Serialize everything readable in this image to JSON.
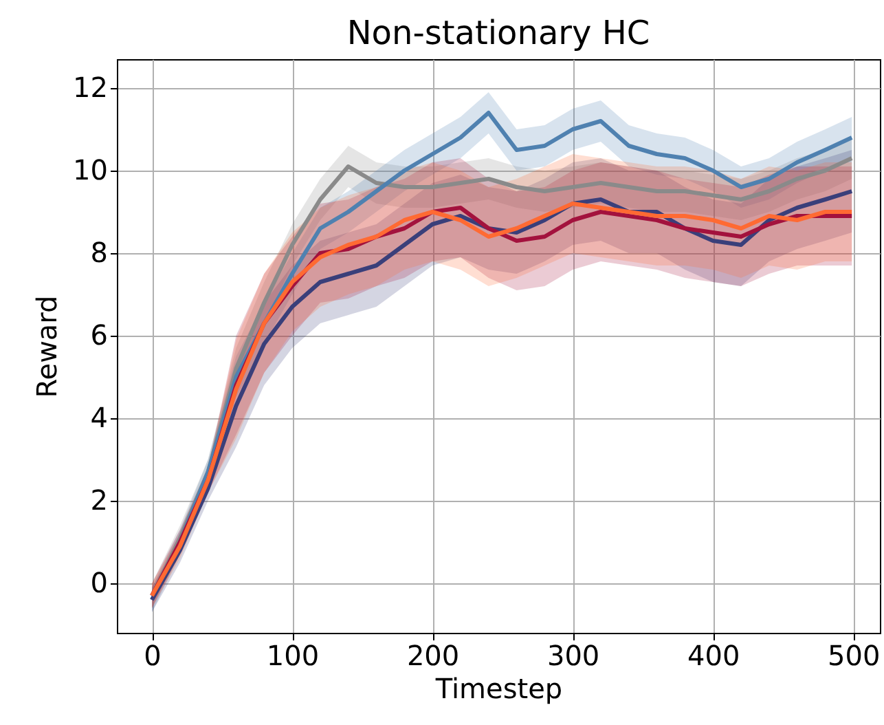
{
  "chart_data": {
    "type": "line",
    "title": "Non-stationary HC",
    "xlabel": "Timestep",
    "ylabel": "Reward",
    "x": [
      0,
      20,
      40,
      60,
      80,
      100,
      120,
      140,
      160,
      180,
      200,
      220,
      240,
      260,
      280,
      300,
      320,
      340,
      360,
      380,
      400,
      420,
      440,
      460,
      480,
      499
    ],
    "xlim": [
      -25,
      519
    ],
    "xticks": [
      0,
      100,
      200,
      300,
      400,
      500
    ],
    "ylim": [
      -1.2,
      12.7
    ],
    "yticks": [
      0,
      2,
      4,
      6,
      8,
      10,
      12
    ],
    "grid": true,
    "legend": false,
    "marker": "none",
    "line_style": "solid",
    "series": [
      {
        "color": "#8a8a8a",
        "values": [
          -0.3,
          1.1,
          2.7,
          5.2,
          6.8,
          8.2,
          9.3,
          10.1,
          9.7,
          9.6,
          9.6,
          9.7,
          9.8,
          9.6,
          9.5,
          9.6,
          9.7,
          9.6,
          9.5,
          9.5,
          9.4,
          9.3,
          9.5,
          9.8,
          10,
          10.3
        ],
        "lower": [
          -0.6,
          0.8,
          2.4,
          4.7,
          6.3,
          7.7,
          8.8,
          9.6,
          9.2,
          9.1,
          9.1,
          9.2,
          9.3,
          9.1,
          9,
          9.1,
          9.2,
          9.1,
          9,
          9,
          8.9,
          8.8,
          9,
          9.3,
          9.5,
          9.8
        ],
        "upper": [
          0,
          1.4,
          3,
          5.7,
          7.3,
          8.7,
          9.8,
          10.6,
          10.2,
          10.1,
          10.1,
          10.2,
          10.3,
          10.1,
          10,
          10.1,
          10.2,
          10.1,
          10,
          10,
          9.9,
          9.8,
          10,
          10.3,
          10.5,
          10.8
        ]
      },
      {
        "color": "#4f81b0",
        "values": [
          -0.4,
          1,
          2.7,
          5,
          6.3,
          7.5,
          8.6,
          9,
          9.5,
          10,
          10.4,
          10.8,
          11.4,
          10.5,
          10.6,
          11,
          11.2,
          10.6,
          10.4,
          10.3,
          10,
          9.6,
          9.8,
          10.2,
          10.5,
          10.8
        ],
        "lower": [
          -0.7,
          0.7,
          2.4,
          4.5,
          5.8,
          7,
          8.1,
          8.5,
          9,
          9.5,
          9.9,
          10.3,
          10.9,
          10,
          10.1,
          10.5,
          10.7,
          10.1,
          9.9,
          9.8,
          9.5,
          9.1,
          9.3,
          9.7,
          10,
          10.3
        ],
        "upper": [
          -0.1,
          1.3,
          3,
          5.5,
          6.8,
          8,
          9.1,
          9.5,
          10,
          10.5,
          10.9,
          11.3,
          11.9,
          11,
          11.1,
          11.5,
          11.7,
          11.1,
          10.9,
          10.8,
          10.5,
          10.1,
          10.3,
          10.7,
          11,
          11.3
        ]
      },
      {
        "color": "#3a3f7a",
        "values": [
          -0.4,
          0.8,
          2.3,
          4.3,
          5.8,
          6.7,
          7.3,
          7.5,
          7.7,
          8.2,
          8.7,
          8.9,
          8.6,
          8.5,
          8.8,
          9.2,
          9.3,
          9,
          9,
          8.6,
          8.3,
          8.2,
          8.8,
          9.1,
          9.3,
          9.5
        ],
        "lower": [
          -0.7,
          0.5,
          2,
          3.3,
          4.8,
          5.7,
          6.3,
          6.5,
          6.7,
          7.2,
          7.7,
          7.9,
          7.6,
          7.5,
          7.8,
          8.2,
          8.3,
          8,
          8,
          7.6,
          7.3,
          7.2,
          7.8,
          8.1,
          8.3,
          8.5
        ],
        "upper": [
          -0.1,
          1.1,
          2.6,
          5.3,
          6.8,
          7.7,
          8.3,
          8.5,
          8.7,
          9.2,
          9.7,
          9.9,
          9.6,
          9.5,
          9.8,
          10.2,
          10.3,
          10,
          10,
          9.6,
          9.3,
          9.2,
          9.8,
          10.1,
          10.3,
          10.5
        ]
      },
      {
        "color": "#a3123d",
        "values": [
          -0.3,
          1,
          2.5,
          4.8,
          6.3,
          7.2,
          8,
          8.1,
          8.4,
          8.6,
          9,
          9.1,
          8.6,
          8.3,
          8.4,
          8.8,
          9,
          8.9,
          8.8,
          8.6,
          8.5,
          8.4,
          8.7,
          8.9,
          8.9,
          8.9
        ],
        "lower": [
          -0.6,
          0.7,
          2.2,
          3.6,
          5.1,
          6,
          6.8,
          6.9,
          7.2,
          7.4,
          7.8,
          7.9,
          7.4,
          7.1,
          7.2,
          7.6,
          7.8,
          7.7,
          7.6,
          7.4,
          7.3,
          7.2,
          7.5,
          7.7,
          7.7,
          7.7
        ],
        "upper": [
          0,
          1.3,
          2.8,
          6,
          7.5,
          8.4,
          9.2,
          9.3,
          9.6,
          9.8,
          10.2,
          10.3,
          9.8,
          9.5,
          9.6,
          10,
          10.2,
          10.1,
          10,
          9.8,
          9.7,
          9.6,
          9.9,
          10.1,
          10.1,
          10.1
        ]
      },
      {
        "color": "#ff6a33",
        "values": [
          -0.3,
          0.9,
          2.5,
          4.7,
          6.3,
          7.3,
          7.9,
          8.2,
          8.4,
          8.8,
          9,
          8.8,
          8.4,
          8.6,
          8.9,
          9.2,
          9.1,
          9,
          8.9,
          8.9,
          8.8,
          8.6,
          8.9,
          8.8,
          9,
          9
        ],
        "lower": [
          -0.6,
          0.6,
          2.2,
          3.5,
          5.1,
          6.1,
          6.7,
          7,
          7.2,
          7.6,
          7.8,
          7.6,
          7.2,
          7.4,
          7.7,
          8,
          7.9,
          7.8,
          7.7,
          7.7,
          7.6,
          7.4,
          7.7,
          7.6,
          7.8,
          7.8
        ],
        "upper": [
          0,
          1.2,
          2.8,
          5.9,
          7.5,
          8.5,
          9.1,
          9.4,
          9.6,
          10,
          10.2,
          10,
          9.6,
          9.8,
          10.1,
          10.4,
          10.3,
          10.2,
          10.1,
          10.1,
          10,
          9.8,
          10.1,
          10,
          10.2,
          10.2
        ]
      }
    ]
  }
}
